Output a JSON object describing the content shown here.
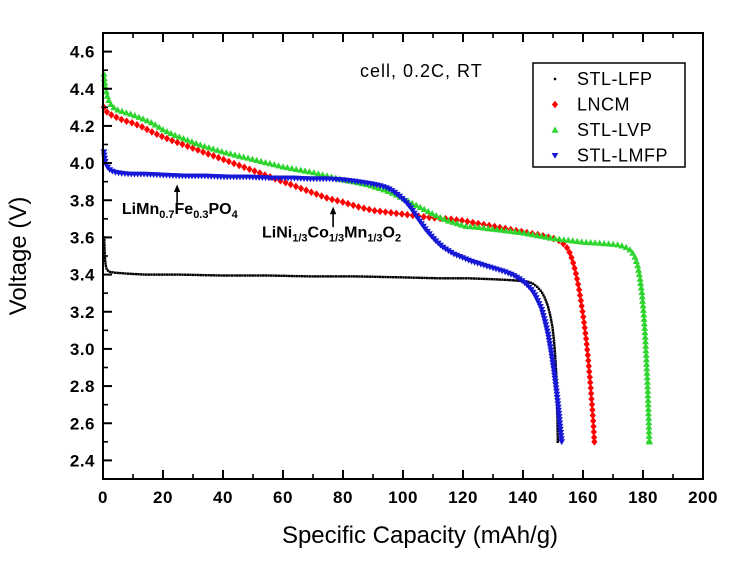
{
  "chart_data": {
    "type": "scatter",
    "title": "cell, 0.2C, RT",
    "xlabel": "Specific Capacity (mAh/g)",
    "ylabel": "Voltage (V)",
    "xlim": [
      0,
      200
    ],
    "ylim": [
      2.3,
      4.7
    ],
    "x_ticks": [
      0,
      20,
      40,
      60,
      80,
      100,
      120,
      140,
      160,
      180,
      200
    ],
    "x_minor_step": 10,
    "y_ticks": [
      "2.4",
      "2.6",
      "2.8",
      "3.0",
      "3.2",
      "3.4",
      "3.6",
      "3.8",
      "4.0",
      "4.2",
      "4.4",
      "4.6"
    ],
    "y_minor_step": 0.1,
    "grid": false,
    "legend": {
      "position": "upper-right"
    },
    "series": [
      {
        "name": "STL-LFP",
        "color": "#000000",
        "marker": "square",
        "points": [
          [
            0.4,
            3.6
          ],
          [
            0.5,
            3.54
          ],
          [
            0.65,
            3.49
          ],
          [
            0.85,
            3.455
          ],
          [
            1.2,
            3.43
          ],
          [
            2,
            3.415
          ],
          [
            4,
            3.41
          ],
          [
            8,
            3.405
          ],
          [
            14,
            3.4
          ],
          [
            25,
            3.4
          ],
          [
            40,
            3.395
          ],
          [
            55,
            3.395
          ],
          [
            70,
            3.39
          ],
          [
            85,
            3.39
          ],
          [
            100,
            3.385
          ],
          [
            112,
            3.38
          ],
          [
            122,
            3.38
          ],
          [
            130,
            3.375
          ],
          [
            136,
            3.37
          ],
          [
            140,
            3.365
          ],
          [
            142,
            3.36
          ],
          [
            143.5,
            3.35
          ],
          [
            145,
            3.33
          ],
          [
            146.3,
            3.305
          ],
          [
            147.4,
            3.27
          ],
          [
            148.3,
            3.23
          ],
          [
            149.1,
            3.18
          ],
          [
            149.8,
            3.12
          ],
          [
            150.3,
            3.05
          ],
          [
            150.7,
            2.97
          ],
          [
            151,
            2.89
          ],
          [
            151.2,
            2.8
          ],
          [
            151.4,
            2.7
          ],
          [
            151.5,
            2.6
          ],
          [
            151.6,
            2.5
          ]
        ]
      },
      {
        "name": "LNCM",
        "color": "#ff0000",
        "marker": "diamond",
        "points": [
          [
            0.3,
            4.3
          ],
          [
            1,
            4.28
          ],
          [
            2,
            4.265
          ],
          [
            4,
            4.25
          ],
          [
            6,
            4.235
          ],
          [
            8,
            4.225
          ],
          [
            10,
            4.215
          ],
          [
            13,
            4.195
          ],
          [
            16,
            4.17
          ],
          [
            20,
            4.14
          ],
          [
            25,
            4.11
          ],
          [
            30,
            4.08
          ],
          [
            35,
            4.05
          ],
          [
            40,
            4.02
          ],
          [
            45,
            3.99
          ],
          [
            50,
            3.96
          ],
          [
            55,
            3.93
          ],
          [
            60,
            3.9
          ],
          [
            65,
            3.87
          ],
          [
            70,
            3.84
          ],
          [
            75,
            3.81
          ],
          [
            80,
            3.79
          ],
          [
            85,
            3.765
          ],
          [
            90,
            3.745
          ],
          [
            95,
            3.735
          ],
          [
            100,
            3.725
          ],
          [
            105,
            3.715
          ],
          [
            110,
            3.705
          ],
          [
            115,
            3.7
          ],
          [
            120,
            3.69
          ],
          [
            125,
            3.675
          ],
          [
            130,
            3.66
          ],
          [
            135,
            3.645
          ],
          [
            140,
            3.63
          ],
          [
            145,
            3.615
          ],
          [
            150,
            3.595
          ],
          [
            152.5,
            3.58
          ],
          [
            154.5,
            3.55
          ],
          [
            155.8,
            3.51
          ],
          [
            156.8,
            3.46
          ],
          [
            157.7,
            3.4
          ],
          [
            158.6,
            3.33
          ],
          [
            159.4,
            3.25
          ],
          [
            160.2,
            3.16
          ],
          [
            161,
            3.06
          ],
          [
            161.7,
            2.95
          ],
          [
            162.3,
            2.84
          ],
          [
            162.9,
            2.72
          ],
          [
            163.4,
            2.61
          ],
          [
            163.8,
            2.5
          ]
        ]
      },
      {
        "name": "STL-LVP",
        "color": "#2fd52f",
        "marker": "triangle-up",
        "points": [
          [
            0.3,
            4.48
          ],
          [
            0.6,
            4.43
          ],
          [
            1,
            4.39
          ],
          [
            1.6,
            4.35
          ],
          [
            2.4,
            4.32
          ],
          [
            3.5,
            4.3
          ],
          [
            5,
            4.285
          ],
          [
            7,
            4.275
          ],
          [
            10,
            4.26
          ],
          [
            13,
            4.24
          ],
          [
            16,
            4.22
          ],
          [
            20,
            4.18
          ],
          [
            24,
            4.15
          ],
          [
            28,
            4.125
          ],
          [
            32,
            4.1
          ],
          [
            36,
            4.08
          ],
          [
            40,
            4.06
          ],
          [
            45,
            4.04
          ],
          [
            50,
            4.02
          ],
          [
            55,
            4.0
          ],
          [
            60,
            3.98
          ],
          [
            65,
            3.965
          ],
          [
            70,
            3.95
          ],
          [
            75,
            3.93
          ],
          [
            80,
            3.91
          ],
          [
            85,
            3.895
          ],
          [
            88,
            3.885
          ],
          [
            91,
            3.87
          ],
          [
            94,
            3.855
          ],
          [
            97,
            3.835
          ],
          [
            100,
            3.81
          ],
          [
            103,
            3.785
          ],
          [
            106,
            3.76
          ],
          [
            109,
            3.735
          ],
          [
            112,
            3.71
          ],
          [
            115,
            3.69
          ],
          [
            118,
            3.675
          ],
          [
            121,
            3.66
          ],
          [
            125,
            3.655
          ],
          [
            130,
            3.645
          ],
          [
            135,
            3.635
          ],
          [
            140,
            3.625
          ],
          [
            145,
            3.61
          ],
          [
            150,
            3.595
          ],
          [
            155,
            3.585
          ],
          [
            160,
            3.575
          ],
          [
            165,
            3.57
          ],
          [
            169,
            3.565
          ],
          [
            172,
            3.56
          ],
          [
            174,
            3.55
          ],
          [
            176,
            3.53
          ],
          [
            177.2,
            3.5
          ],
          [
            178.2,
            3.45
          ],
          [
            179,
            3.38
          ],
          [
            179.7,
            3.29
          ],
          [
            180.3,
            3.18
          ],
          [
            180.8,
            3.05
          ],
          [
            181.2,
            2.92
          ],
          [
            181.6,
            2.77
          ],
          [
            181.9,
            2.62
          ],
          [
            182.1,
            2.5
          ]
        ]
      },
      {
        "name": "STL-LMFP",
        "color": "#1717d6",
        "marker": "triangle-down",
        "points": [
          [
            0.3,
            4.06
          ],
          [
            0.5,
            4.03
          ],
          [
            0.8,
            4.005
          ],
          [
            1.2,
            3.985
          ],
          [
            1.8,
            3.97
          ],
          [
            2.6,
            3.96
          ],
          [
            4,
            3.95
          ],
          [
            6,
            3.945
          ],
          [
            9,
            3.94
          ],
          [
            14,
            3.94
          ],
          [
            20,
            3.935
          ],
          [
            27,
            3.93
          ],
          [
            34,
            3.93
          ],
          [
            41,
            3.925
          ],
          [
            48,
            3.925
          ],
          [
            55,
            3.92
          ],
          [
            62,
            3.92
          ],
          [
            69,
            3.915
          ],
          [
            75,
            3.915
          ],
          [
            80,
            3.91
          ],
          [
            85,
            3.9
          ],
          [
            89,
            3.89
          ],
          [
            92,
            3.88
          ],
          [
            95,
            3.865
          ],
          [
            97,
            3.845
          ],
          [
            99,
            3.82
          ],
          [
            101,
            3.79
          ],
          [
            103,
            3.75
          ],
          [
            105,
            3.7
          ],
          [
            107,
            3.655
          ],
          [
            109,
            3.615
          ],
          [
            111,
            3.58
          ],
          [
            113,
            3.55
          ],
          [
            115,
            3.53
          ],
          [
            117,
            3.51
          ],
          [
            120,
            3.49
          ],
          [
            123,
            3.47
          ],
          [
            127,
            3.45
          ],
          [
            131,
            3.43
          ],
          [
            134,
            3.415
          ],
          [
            137,
            3.395
          ],
          [
            139,
            3.375
          ],
          [
            141,
            3.35
          ],
          [
            142.5,
            3.325
          ],
          [
            144,
            3.29
          ],
          [
            145.2,
            3.25
          ],
          [
            146.3,
            3.21
          ],
          [
            147.3,
            3.15
          ],
          [
            148.2,
            3.09
          ],
          [
            149,
            3.02
          ],
          [
            149.8,
            2.94
          ],
          [
            150.5,
            2.86
          ],
          [
            151.2,
            2.77
          ],
          [
            151.8,
            2.68
          ],
          [
            152.4,
            2.58
          ],
          [
            152.9,
            2.5
          ]
        ]
      }
    ],
    "annotations": [
      {
        "id": "lmfp-formula",
        "segments": [
          {
            "t": "LiMn"
          },
          {
            "t": "0.7",
            "sub": true
          },
          {
            "t": "Fe"
          },
          {
            "t": "0.3",
            "sub": true
          },
          {
            "t": "PO"
          },
          {
            "t": "4",
            "sub": true
          }
        ],
        "text_x": 6.3,
        "text_v": 3.725,
        "arrow": {
          "x": 24.7,
          "v_tail": 3.775,
          "v_tip": 3.885
        }
      },
      {
        "id": "ncm-formula",
        "segments": [
          {
            "t": "LiNi"
          },
          {
            "t": "1/3",
            "sub": true
          },
          {
            "t": "Co"
          },
          {
            "t": "1/3",
            "sub": true
          },
          {
            "t": "Mn"
          },
          {
            "t": "1/3",
            "sub": true
          },
          {
            "t": "O"
          },
          {
            "t": "2",
            "sub": true
          }
        ],
        "text_x": 53,
        "text_v": 3.6,
        "arrow": {
          "x": 76.7,
          "v_tail": 3.655,
          "v_tip": 3.765
        }
      }
    ]
  }
}
